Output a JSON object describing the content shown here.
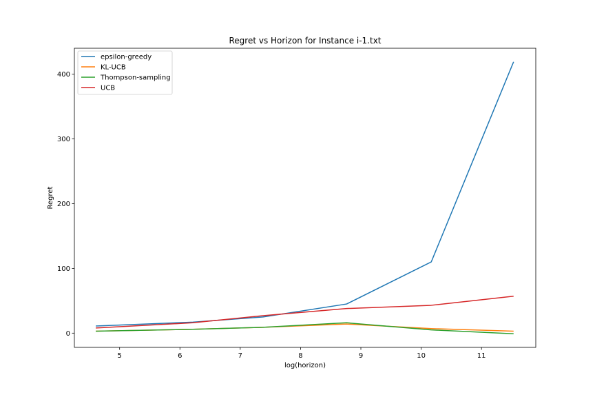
{
  "chart_data": {
    "type": "line",
    "title": "Regret vs Horizon for Instance i-1.txt",
    "xlabel": "log(horizon)",
    "ylabel": "Regret",
    "xlim": [
      4.25,
      11.9
    ],
    "ylim": [
      -22,
      440
    ],
    "xticks": [
      5,
      6,
      7,
      8,
      9,
      10,
      11
    ],
    "yticks": [
      0,
      100,
      200,
      300,
      400
    ],
    "x": [
      4.605,
      6.215,
      7.378,
      8.764,
      10.167,
      11.532
    ],
    "series": [
      {
        "name": "epsilon-greedy",
        "color": "#1f77b4",
        "values": [
          11,
          17,
          25,
          45,
          110,
          419
        ]
      },
      {
        "name": "KL-UCB",
        "color": "#ff7f0e",
        "values": [
          3,
          6,
          9,
          14,
          7,
          3
        ]
      },
      {
        "name": "Thompson-sampling",
        "color": "#2ca02c",
        "values": [
          3,
          6,
          9,
          16,
          5,
          -1
        ]
      },
      {
        "name": "UCB",
        "color": "#d62728",
        "values": [
          8,
          16,
          27,
          38,
          43,
          57
        ]
      }
    ],
    "legend_position": "top-left",
    "grid": false
  }
}
